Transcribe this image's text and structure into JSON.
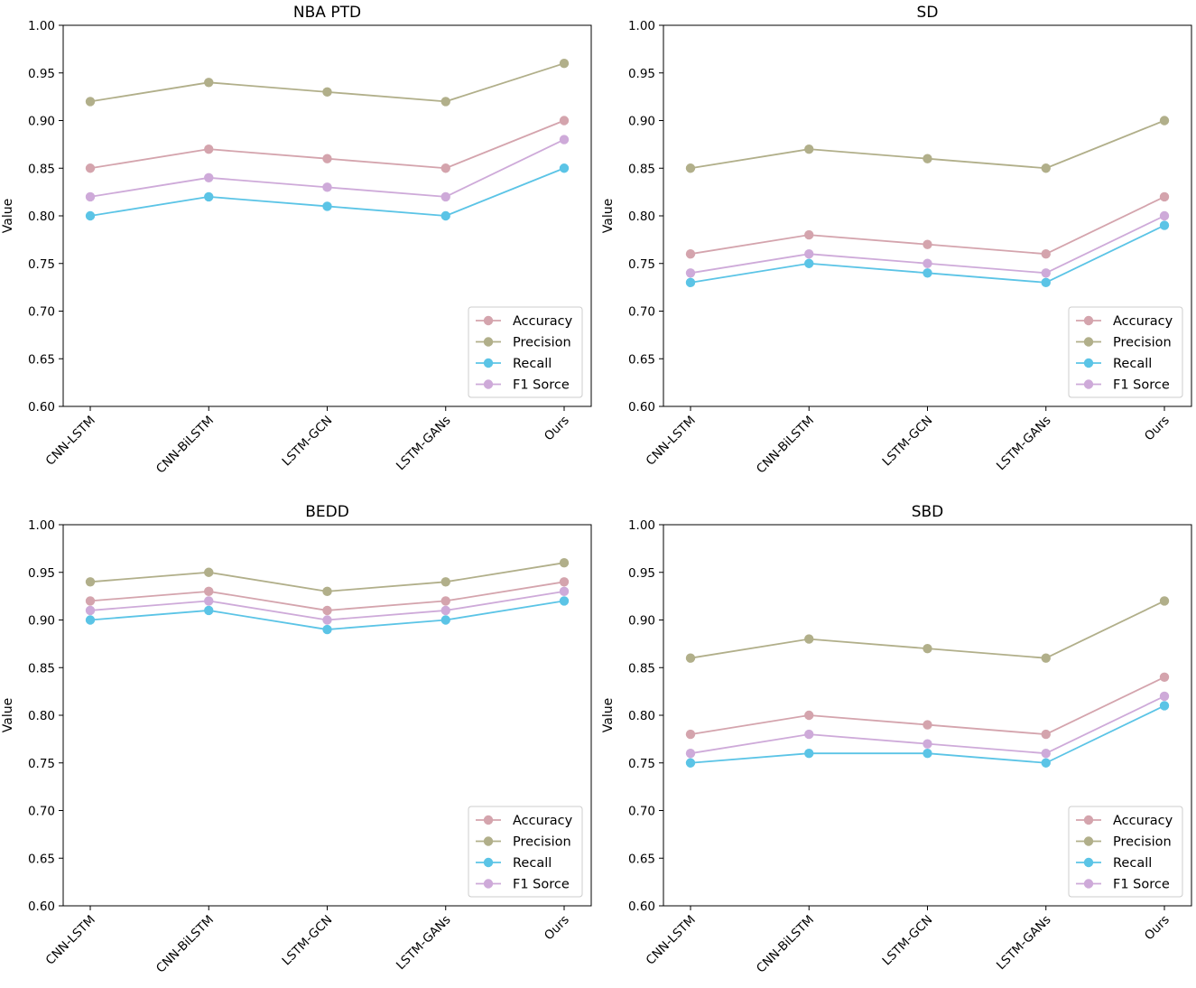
{
  "chart_data": [
    {
      "type": "line",
      "title": "NBA PTD",
      "xlabel": "",
      "ylabel": "Value",
      "ylim": [
        0.6,
        1.0
      ],
      "yticks": [
        "0.60",
        "0.65",
        "0.70",
        "0.75",
        "0.80",
        "0.85",
        "0.90",
        "0.95",
        "1.00"
      ],
      "categories": [
        "CNN-LSTM",
        "CNN-BiLSTM",
        "LSTM-GCN",
        "LSTM-GANs",
        "Ours"
      ],
      "legend_position": "lower-right",
      "series": [
        {
          "name": "Accuracy",
          "color": "#d4a4ad",
          "values": [
            0.85,
            0.87,
            0.86,
            0.85,
            0.9
          ]
        },
        {
          "name": "Precision",
          "color": "#b1af8a",
          "values": [
            0.92,
            0.94,
            0.93,
            0.92,
            0.96
          ]
        },
        {
          "name": "Recall",
          "color": "#5bc4e6",
          "values": [
            0.8,
            0.82,
            0.81,
            0.8,
            0.85
          ]
        },
        {
          "name": "F1 Sorce",
          "color": "#ceaad9",
          "values": [
            0.82,
            0.84,
            0.83,
            0.82,
            0.88
          ]
        }
      ]
    },
    {
      "type": "line",
      "title": "SD",
      "xlabel": "",
      "ylabel": "Value",
      "ylim": [
        0.6,
        1.0
      ],
      "yticks": [
        "0.60",
        "0.65",
        "0.70",
        "0.75",
        "0.80",
        "0.85",
        "0.90",
        "0.95",
        "1.00"
      ],
      "categories": [
        "CNN-LSTM",
        "CNN-BiLSTM",
        "LSTM-GCN",
        "LSTM-GANs",
        "Ours"
      ],
      "legend_position": "lower-right",
      "series": [
        {
          "name": "Accuracy",
          "color": "#d4a4ad",
          "values": [
            0.76,
            0.78,
            0.77,
            0.76,
            0.82
          ]
        },
        {
          "name": "Precision",
          "color": "#b1af8a",
          "values": [
            0.85,
            0.87,
            0.86,
            0.85,
            0.9
          ]
        },
        {
          "name": "Recall",
          "color": "#5bc4e6",
          "values": [
            0.73,
            0.75,
            0.74,
            0.73,
            0.79
          ]
        },
        {
          "name": "F1 Sorce",
          "color": "#ceaad9",
          "values": [
            0.74,
            0.76,
            0.75,
            0.74,
            0.8
          ]
        }
      ]
    },
    {
      "type": "line",
      "title": "BEDD",
      "xlabel": "",
      "ylabel": "Value",
      "ylim": [
        0.6,
        1.0
      ],
      "yticks": [
        "0.60",
        "0.65",
        "0.70",
        "0.75",
        "0.80",
        "0.85",
        "0.90",
        "0.95",
        "1.00"
      ],
      "categories": [
        "CNN-LSTM",
        "CNN-BiLSTM",
        "LSTM-GCN",
        "LSTM-GANs",
        "Ours"
      ],
      "legend_position": "lower-right",
      "series": [
        {
          "name": "Accuracy",
          "color": "#d4a4ad",
          "values": [
            0.92,
            0.93,
            0.91,
            0.92,
            0.94
          ]
        },
        {
          "name": "Precision",
          "color": "#b1af8a",
          "values": [
            0.94,
            0.95,
            0.93,
            0.94,
            0.96
          ]
        },
        {
          "name": "Recall",
          "color": "#5bc4e6",
          "values": [
            0.9,
            0.91,
            0.89,
            0.9,
            0.92
          ]
        },
        {
          "name": "F1 Sorce",
          "color": "#ceaad9",
          "values": [
            0.91,
            0.92,
            0.9,
            0.91,
            0.93
          ]
        }
      ]
    },
    {
      "type": "line",
      "title": "SBD",
      "xlabel": "",
      "ylabel": "Value",
      "ylim": [
        0.6,
        1.0
      ],
      "yticks": [
        "0.60",
        "0.65",
        "0.70",
        "0.75",
        "0.80",
        "0.85",
        "0.90",
        "0.95",
        "1.00"
      ],
      "categories": [
        "CNN-LSTM",
        "CNN-BiLSTM",
        "LSTM-GCN",
        "LSTM-GANs",
        "Ours"
      ],
      "legend_position": "lower-right",
      "series": [
        {
          "name": "Accuracy",
          "color": "#d4a4ad",
          "values": [
            0.78,
            0.8,
            0.79,
            0.78,
            0.84
          ]
        },
        {
          "name": "Precision",
          "color": "#b1af8a",
          "values": [
            0.86,
            0.88,
            0.87,
            0.86,
            0.92
          ]
        },
        {
          "name": "Recall",
          "color": "#5bc4e6",
          "values": [
            0.75,
            0.76,
            0.76,
            0.75,
            0.81
          ]
        },
        {
          "name": "F1 Sorce",
          "color": "#ceaad9",
          "values": [
            0.76,
            0.78,
            0.77,
            0.76,
            0.82
          ]
        }
      ]
    }
  ]
}
